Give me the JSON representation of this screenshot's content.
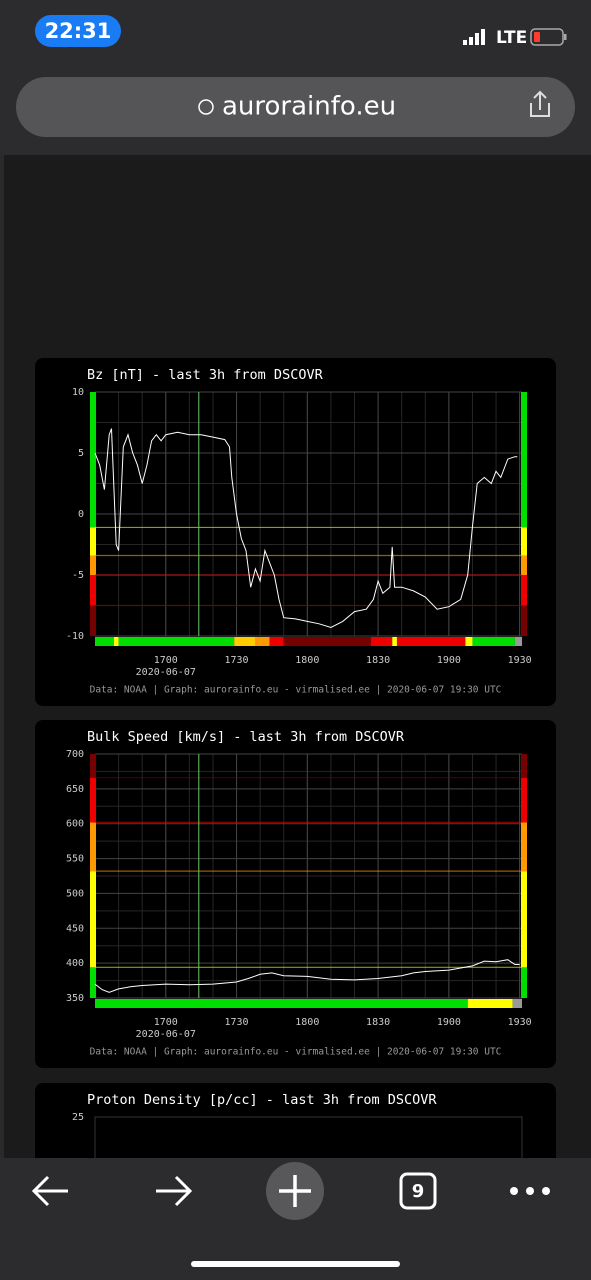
{
  "status_bar": {
    "time": "22:31",
    "network": "LTE"
  },
  "browser": {
    "url": "aurorainfo.eu",
    "tab_count": "9"
  },
  "chart_data": [
    {
      "type": "line",
      "title": "Bz [nT] - last 3h from DSCOVR",
      "date_label": "2020-06-07",
      "footer": "Data: NOAA | Graph: aurorainfo.eu - virmalised.ee | 2020-06-07 19:30 UTC",
      "x": [
        "16:30",
        "16:32",
        "16:34",
        "16:36",
        "16:37",
        "16:39",
        "16:40",
        "16:42",
        "16:44",
        "16:46",
        "16:48",
        "16:50",
        "16:52",
        "16:54",
        "16:56",
        "16:58",
        "17:00",
        "17:05",
        "17:10",
        "17:15",
        "17:20",
        "17:25",
        "17:27",
        "17:28",
        "17:30",
        "17:32",
        "17:34",
        "17:36",
        "17:38",
        "17:40",
        "17:42",
        "17:44",
        "17:46",
        "17:48",
        "17:50",
        "17:55",
        "18:00",
        "18:05",
        "18:10",
        "18:15",
        "18:20",
        "18:25",
        "18:28",
        "18:30",
        "18:32",
        "18:35",
        "18:36",
        "18:37",
        "18:40",
        "18:45",
        "18:50",
        "18:55",
        "19:00",
        "19:05",
        "19:08",
        "19:10",
        "19:12",
        "19:15",
        "19:18",
        "19:20",
        "19:22",
        "19:25",
        "19:28",
        "19:29"
      ],
      "series": [
        {
          "name": "Bz",
          "color": "#ffffff",
          "values": [
            5,
            4,
            2,
            6.5,
            7,
            -2.5,
            -3,
            5.5,
            6.5,
            5,
            4,
            2.5,
            4,
            6,
            6.5,
            6,
            6.5,
            6.7,
            6.5,
            6.5,
            6.3,
            6.1,
            5.5,
            3,
            0,
            -2,
            -3,
            -6,
            -4.5,
            -5.5,
            -3,
            -4,
            -5,
            -7,
            -8.5,
            -8.6,
            -8.8,
            -9,
            -9.3,
            -8.8,
            -8,
            -7.8,
            -7,
            -5.5,
            -6.5,
            -6,
            -2.7,
            -6,
            -6,
            -6.3,
            -6.8,
            -7.8,
            -7.6,
            -7,
            -5,
            -1,
            2.5,
            3,
            2.5,
            3.5,
            3,
            4.5,
            4.7,
            4.7
          ]
        }
      ],
      "xlim": [
        "16:30",
        "19:31"
      ],
      "xticks": [
        {
          "value": "17:00",
          "label": "1700"
        },
        {
          "value": "17:30",
          "label": "1730"
        },
        {
          "value": "18:00",
          "label": "1800"
        },
        {
          "value": "18:30",
          "label": "1830"
        },
        {
          "value": "19:00",
          "label": "1900"
        },
        {
          "value": "19:30",
          "label": "1930"
        }
      ],
      "ylim": [
        -10,
        10
      ],
      "yticks": [
        10,
        5,
        0,
        -5,
        -10
      ],
      "grid": true,
      "marker_x": "17:14",
      "base_color": "#00e000",
      "thresholds": [
        {
          "value": -1.1,
          "color": "#ffff00"
        },
        {
          "value": -3.4,
          "color": "#ff9900"
        },
        {
          "value": -5,
          "color": "#ee0000"
        },
        {
          "value": -7.5,
          "color": "#770000"
        }
      ],
      "status_strip": [
        {
          "from": "16:30",
          "to": "16:38",
          "color": "#00e000"
        },
        {
          "from": "16:38",
          "to": "16:40",
          "color": "#ffff00"
        },
        {
          "from": "16:40",
          "to": "17:29",
          "color": "#00e000"
        },
        {
          "from": "17:29",
          "to": "17:38",
          "color": "#ffcc00"
        },
        {
          "from": "17:38",
          "to": "17:44",
          "color": "#ff9900"
        },
        {
          "from": "17:44",
          "to": "17:50",
          "color": "#ee0000"
        },
        {
          "from": "17:50",
          "to": "18:27",
          "color": "#770000"
        },
        {
          "from": "18:27",
          "to": "18:36",
          "color": "#ee0000"
        },
        {
          "from": "18:36",
          "to": "18:38",
          "color": "#ffff00"
        },
        {
          "from": "18:38",
          "to": "19:07",
          "color": "#ee0000"
        },
        {
          "from": "19:07",
          "to": "19:10",
          "color": "#ffff00"
        },
        {
          "from": "19:10",
          "to": "19:28",
          "color": "#00e000"
        },
        {
          "from": "19:28",
          "to": "19:31",
          "color": "#999999"
        }
      ]
    },
    {
      "type": "line",
      "title": "Bulk Speed [km/s] - last 3h from DSCOVR",
      "date_label": "2020-06-07",
      "footer": "Data: NOAA | Graph: aurorainfo.eu - virmalised.ee | 2020-06-07 19:30 UTC",
      "x": [
        "16:30",
        "16:33",
        "16:36",
        "16:40",
        "16:45",
        "16:50",
        "17:00",
        "17:10",
        "17:20",
        "17:30",
        "17:35",
        "17:40",
        "17:45",
        "17:50",
        "18:00",
        "18:10",
        "18:20",
        "18:30",
        "18:40",
        "18:45",
        "18:50",
        "19:00",
        "19:05",
        "19:10",
        "19:15",
        "19:20",
        "19:25",
        "19:28",
        "19:30"
      ],
      "series": [
        {
          "name": "Bulk Speed",
          "color": "#ffffff",
          "values": [
            370,
            362,
            358,
            363,
            366,
            368,
            370,
            369,
            370,
            373,
            378,
            384,
            386,
            382,
            381,
            377,
            376,
            378,
            382,
            386,
            388,
            390,
            393,
            396,
            403,
            402,
            405,
            398,
            398
          ]
        }
      ],
      "xlim": [
        "16:30",
        "19:31"
      ],
      "xticks": [
        {
          "value": "17:00",
          "label": "1700"
        },
        {
          "value": "17:30",
          "label": "1730"
        },
        {
          "value": "18:00",
          "label": "1800"
        },
        {
          "value": "18:30",
          "label": "1830"
        },
        {
          "value": "19:00",
          "label": "1900"
        },
        {
          "value": "19:30",
          "label": "1930"
        }
      ],
      "ylim": [
        350,
        700
      ],
      "yticks": [
        700,
        650,
        600,
        550,
        500,
        450,
        400,
        350
      ],
      "grid": true,
      "marker_x": "17:14",
      "base_color": "#00e000",
      "thresholds": [
        {
          "value": 394,
          "color": "#ffff00"
        },
        {
          "value": 532,
          "color": "#ff9900"
        },
        {
          "value": 602,
          "color": "#ee0000"
        },
        {
          "value": 666,
          "color": "#770000"
        }
      ],
      "status_strip": [
        {
          "from": "16:30",
          "to": "19:08",
          "color": "#00e000"
        },
        {
          "from": "19:08",
          "to": "19:27",
          "color": "#ffff00"
        },
        {
          "from": "19:27",
          "to": "19:31",
          "color": "#999999"
        }
      ]
    },
    {
      "type": "line",
      "title": "Proton Density [p/cc] - last 3h from DSCOVR",
      "yticks": [
        25
      ]
    }
  ]
}
